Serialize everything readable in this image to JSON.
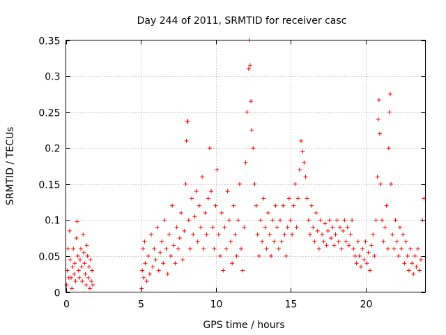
{
  "chart_data": {
    "type": "scatter",
    "title": "Day 244 of 2011, SRMTID for receiver casc",
    "xlabel": "GPS time / hours",
    "ylabel": "SRMTID / TECUs",
    "xlim": [
      0,
      24
    ],
    "ylim": [
      0,
      0.35
    ],
    "x_ticks": [
      0,
      5,
      10,
      15,
      20
    ],
    "y_ticks": [
      0,
      0.05,
      0.1,
      0.15,
      0.2,
      0.25,
      0.3,
      0.35
    ],
    "x_tick_labels": [
      "0",
      "5",
      "10",
      "15",
      "20"
    ],
    "y_tick_labels": [
      "0",
      "0.05",
      "0.1",
      "0.15",
      "0.2",
      "0.25",
      "0.3",
      "0.35"
    ],
    "grid": true,
    "marker": "+",
    "series": [
      {
        "name": "SRMTID",
        "color": "#ff0000",
        "points": [
          [
            0.05,
            0.01
          ],
          [
            0.1,
            0.03
          ],
          [
            0.15,
            0.06
          ],
          [
            0.2,
            0.02
          ],
          [
            0.25,
            0.085
          ],
          [
            0.3,
            0.045
          ],
          [
            0.35,
            0.02
          ],
          [
            0.4,
            0.005
          ],
          [
            0.45,
            0.035
          ],
          [
            0.5,
            0.06
          ],
          [
            0.55,
            0.025
          ],
          [
            0.6,
            0.04
          ],
          [
            0.65,
            0.015
          ],
          [
            0.7,
            0.075
          ],
          [
            0.75,
            0.098
          ],
          [
            0.8,
            0.05
          ],
          [
            0.85,
            0.03
          ],
          [
            0.9,
            0.02
          ],
          [
            0.95,
            0.045
          ],
          [
            1.0,
            0.06
          ],
          [
            1.05,
            0.035
          ],
          [
            1.1,
            0.015
          ],
          [
            1.15,
            0.08
          ],
          [
            1.2,
            0.055
          ],
          [
            1.25,
            0.04
          ],
          [
            1.3,
            0.025
          ],
          [
            1.35,
            0.01
          ],
          [
            1.4,
            0.065
          ],
          [
            1.45,
            0.05
          ],
          [
            1.5,
            0.02
          ],
          [
            1.55,
            0.035
          ],
          [
            1.6,
            0.005
          ],
          [
            1.65,
            0.045
          ],
          [
            1.7,
            0.015
          ],
          [
            1.75,
            0.03
          ],
          [
            1.8,
            0.01
          ],
          [
            5.05,
            0.005
          ],
          [
            5.1,
            0.03
          ],
          [
            5.15,
            0.06
          ],
          [
            5.2,
            0.02
          ],
          [
            5.25,
            0.07
          ],
          [
            5.3,
            0.04
          ],
          [
            5.4,
            0.015
          ],
          [
            5.5,
            0.05
          ],
          [
            5.6,
            0.025
          ],
          [
            5.7,
            0.08
          ],
          [
            5.8,
            0.035
          ],
          [
            5.9,
            0.06
          ],
          [
            6.0,
            0.045
          ],
          [
            6.1,
            0.09
          ],
          [
            6.2,
            0.03
          ],
          [
            6.3,
            0.055
          ],
          [
            6.4,
            0.07
          ],
          [
            6.5,
            0.04
          ],
          [
            6.6,
            0.1
          ],
          [
            6.7,
            0.06
          ],
          [
            6.8,
            0.025
          ],
          [
            6.9,
            0.08
          ],
          [
            7.0,
            0.05
          ],
          [
            7.1,
            0.12
          ],
          [
            7.2,
            0.065
          ],
          [
            7.3,
            0.04
          ],
          [
            7.4,
            0.09
          ],
          [
            7.5,
            0.06
          ],
          [
            7.6,
            0.075
          ],
          [
            7.7,
            0.11
          ],
          [
            7.8,
            0.045
          ],
          [
            7.9,
            0.085
          ],
          [
            8.0,
            0.15
          ],
          [
            8.05,
            0.21
          ],
          [
            8.1,
            0.237
          ],
          [
            8.15,
            0.237
          ],
          [
            8.2,
            0.1
          ],
          [
            8.3,
            0.06
          ],
          [
            8.4,
            0.13
          ],
          [
            8.5,
            0.08
          ],
          [
            8.6,
            0.105
          ],
          [
            8.7,
            0.14
          ],
          [
            8.8,
            0.07
          ],
          [
            8.9,
            0.12
          ],
          [
            9.0,
            0.09
          ],
          [
            9.1,
            0.16
          ],
          [
            9.2,
            0.06
          ],
          [
            9.3,
            0.11
          ],
          [
            9.4,
            0.08
          ],
          [
            9.5,
            0.13
          ],
          [
            9.6,
            0.2
          ],
          [
            9.7,
            0.14
          ],
          [
            9.8,
            0.09
          ],
          [
            9.9,
            0.06
          ],
          [
            10.0,
            0.12
          ],
          [
            10.1,
            0.17
          ],
          [
            10.2,
            0.08
          ],
          [
            10.3,
            0.05
          ],
          [
            10.4,
            0.11
          ],
          [
            10.5,
            0.03
          ],
          [
            10.6,
            0.09
          ],
          [
            10.7,
            0.06
          ],
          [
            10.8,
            0.14
          ],
          [
            10.9,
            0.1
          ],
          [
            11.0,
            0.07
          ],
          [
            11.1,
            0.04
          ],
          [
            11.2,
            0.12
          ],
          [
            11.3,
            0.08
          ],
          [
            11.4,
            0.05
          ],
          [
            11.5,
            0.1
          ],
          [
            11.6,
            0.15
          ],
          [
            11.7,
            0.06
          ],
          [
            11.8,
            0.03
          ],
          [
            11.9,
            0.09
          ],
          [
            12.0,
            0.18
          ],
          [
            12.1,
            0.25
          ],
          [
            12.2,
            0.31
          ],
          [
            12.25,
            0.35
          ],
          [
            12.3,
            0.315
          ],
          [
            12.35,
            0.265
          ],
          [
            12.4,
            0.225
          ],
          [
            12.5,
            0.2
          ],
          [
            12.6,
            0.15
          ],
          [
            12.7,
            0.12
          ],
          [
            12.8,
            0.08
          ],
          [
            12.9,
            0.05
          ],
          [
            13.0,
            0.1
          ],
          [
            13.1,
            0.07
          ],
          [
            13.2,
            0.13
          ],
          [
            13.3,
            0.09
          ],
          [
            13.4,
            0.06
          ],
          [
            13.5,
            0.11
          ],
          [
            13.6,
            0.08
          ],
          [
            13.7,
            0.05
          ],
          [
            13.8,
            0.1
          ],
          [
            13.9,
            0.07
          ],
          [
            14.0,
            0.12
          ],
          [
            14.1,
            0.09
          ],
          [
            14.2,
            0.06
          ],
          [
            14.3,
            0.1
          ],
          [
            14.4,
            0.07
          ],
          [
            14.5,
            0.12
          ],
          [
            14.6,
            0.08
          ],
          [
            14.7,
            0.05
          ],
          [
            14.8,
            0.09
          ],
          [
            14.9,
            0.13
          ],
          [
            15.0,
            0.1
          ],
          [
            15.1,
            0.08
          ],
          [
            15.2,
            0.12
          ],
          [
            15.3,
            0.15
          ],
          [
            15.4,
            0.09
          ],
          [
            15.5,
            0.13
          ],
          [
            15.6,
            0.17
          ],
          [
            15.7,
            0.21
          ],
          [
            15.8,
            0.195
          ],
          [
            15.9,
            0.18
          ],
          [
            16.0,
            0.16
          ],
          [
            16.1,
            0.13
          ],
          [
            16.2,
            0.1
          ],
          [
            16.3,
            0.08
          ],
          [
            16.4,
            0.12
          ],
          [
            16.5,
            0.09
          ],
          [
            16.6,
            0.07
          ],
          [
            16.7,
            0.11
          ],
          [
            16.8,
            0.085
          ],
          [
            16.9,
            0.06
          ],
          [
            17.0,
            0.1
          ],
          [
            17.1,
            0.08
          ],
          [
            17.2,
            0.07
          ],
          [
            17.3,
            0.095
          ],
          [
            17.4,
            0.065
          ],
          [
            17.5,
            0.085
          ],
          [
            17.6,
            0.1
          ],
          [
            17.7,
            0.075
          ],
          [
            17.8,
            0.09
          ],
          [
            17.9,
            0.065
          ],
          [
            18.0,
            0.08
          ],
          [
            18.1,
            0.1
          ],
          [
            18.2,
            0.07
          ],
          [
            18.3,
            0.09
          ],
          [
            18.4,
            0.06
          ],
          [
            18.5,
            0.085
          ],
          [
            18.6,
            0.1
          ],
          [
            18.7,
            0.07
          ],
          [
            18.8,
            0.09
          ],
          [
            18.9,
            0.065
          ],
          [
            19.0,
            0.08
          ],
          [
            19.1,
            0.1
          ],
          [
            19.2,
            0.06
          ],
          [
            19.3,
            0.05
          ],
          [
            19.4,
            0.04
          ],
          [
            19.5,
            0.07
          ],
          [
            19.6,
            0.05
          ],
          [
            19.7,
            0.035
          ],
          [
            19.8,
            0.06
          ],
          [
            19.9,
            0.045
          ],
          [
            20.0,
            0.07
          ],
          [
            20.1,
            0.04
          ],
          [
            20.2,
            0.055
          ],
          [
            20.3,
            0.03
          ],
          [
            20.4,
            0.065
          ],
          [
            20.5,
            0.08
          ],
          [
            20.6,
            0.05
          ],
          [
            20.7,
            0.1
          ],
          [
            20.8,
            0.16
          ],
          [
            20.85,
            0.24
          ],
          [
            20.9,
            0.267
          ],
          [
            20.95,
            0.22
          ],
          [
            21.0,
            0.15
          ],
          [
            21.1,
            0.1
          ],
          [
            21.2,
            0.07
          ],
          [
            21.3,
            0.09
          ],
          [
            21.4,
            0.12
          ],
          [
            21.5,
            0.06
          ],
          [
            21.55,
            0.2
          ],
          [
            21.6,
            0.25
          ],
          [
            21.65,
            0.275
          ],
          [
            21.7,
            0.15
          ],
          [
            21.8,
            0.08
          ],
          [
            21.9,
            0.06
          ],
          [
            22.0,
            0.1
          ],
          [
            22.1,
            0.07
          ],
          [
            22.2,
            0.05
          ],
          [
            22.3,
            0.09
          ],
          [
            22.4,
            0.06
          ],
          [
            22.5,
            0.08
          ],
          [
            22.6,
            0.04
          ],
          [
            22.7,
            0.07
          ],
          [
            22.8,
            0.05
          ],
          [
            22.9,
            0.03
          ],
          [
            23.0,
            0.06
          ],
          [
            23.1,
            0.04
          ],
          [
            23.2,
            0.025
          ],
          [
            23.3,
            0.05
          ],
          [
            23.4,
            0.035
          ],
          [
            23.5,
            0.06
          ],
          [
            23.6,
            0.03
          ],
          [
            23.7,
            0.045
          ],
          [
            23.8,
            0.1
          ],
          [
            23.9,
            0.13
          ]
        ]
      }
    ]
  }
}
